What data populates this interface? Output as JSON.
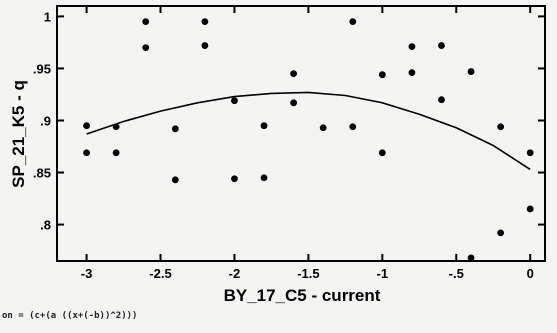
{
  "chart_data": {
    "type": "scatter",
    "xlabel": "BY_17_C5 - current",
    "ylabel": "SP_21_K5 - q",
    "xlim": [
      -3.2,
      0.1
    ],
    "ylim": [
      0.765,
      1.01
    ],
    "xticks": [
      -3,
      -2.5,
      -2,
      -1.5,
      -1,
      -0.5,
      0
    ],
    "xtick_labels": [
      "-3",
      "-2.5",
      "-2",
      "-1.5",
      "-1",
      "-.5",
      "0"
    ],
    "yticks": [
      0.8,
      0.85,
      0.9,
      0.95,
      1
    ],
    "ytick_labels": [
      ".8",
      ".85",
      ".9",
      ".95",
      "1"
    ],
    "grid": false,
    "points": [
      {
        "x": -3.0,
        "y": 0.895
      },
      {
        "x": -3.0,
        "y": 0.869
      },
      {
        "x": -2.8,
        "y": 0.894
      },
      {
        "x": -2.8,
        "y": 0.869
      },
      {
        "x": -2.6,
        "y": 0.995
      },
      {
        "x": -2.6,
        "y": 0.97
      },
      {
        "x": -2.4,
        "y": 0.892
      },
      {
        "x": -2.4,
        "y": 0.843
      },
      {
        "x": -2.2,
        "y": 0.995
      },
      {
        "x": -2.2,
        "y": 0.972
      },
      {
        "x": -2.0,
        "y": 0.919
      },
      {
        "x": -2.0,
        "y": 0.844
      },
      {
        "x": -1.8,
        "y": 0.895
      },
      {
        "x": -1.8,
        "y": 0.845
      },
      {
        "x": -1.6,
        "y": 0.945
      },
      {
        "x": -1.6,
        "y": 0.917
      },
      {
        "x": -1.4,
        "y": 0.893
      },
      {
        "x": -1.2,
        "y": 0.995
      },
      {
        "x": -1.2,
        "y": 0.894
      },
      {
        "x": -1.0,
        "y": 0.944
      },
      {
        "x": -1.0,
        "y": 0.869
      },
      {
        "x": -0.8,
        "y": 0.971
      },
      {
        "x": -0.8,
        "y": 0.946
      },
      {
        "x": -0.6,
        "y": 0.972
      },
      {
        "x": -0.6,
        "y": 0.92
      },
      {
        "x": -0.4,
        "y": 0.947
      },
      {
        "x": -0.4,
        "y": 0.768
      },
      {
        "x": -0.2,
        "y": 0.894
      },
      {
        "x": -0.2,
        "y": 0.792
      },
      {
        "x": 0.0,
        "y": 0.869
      },
      {
        "x": 0.0,
        "y": 0.815
      }
    ],
    "fit": {
      "type": "line",
      "x": [
        -3.0,
        -2.75,
        -2.5,
        -2.25,
        -2.0,
        -1.75,
        -1.5,
        -1.25,
        -1.0,
        -0.75,
        -0.5,
        -0.25,
        0.0
      ],
      "y": [
        0.887,
        0.899,
        0.909,
        0.917,
        0.923,
        0.926,
        0.927,
        0.924,
        0.917,
        0.906,
        0.893,
        0.876,
        0.853
      ]
    },
    "formula": "on = (c+(a ((x+(-b))^2)))"
  }
}
